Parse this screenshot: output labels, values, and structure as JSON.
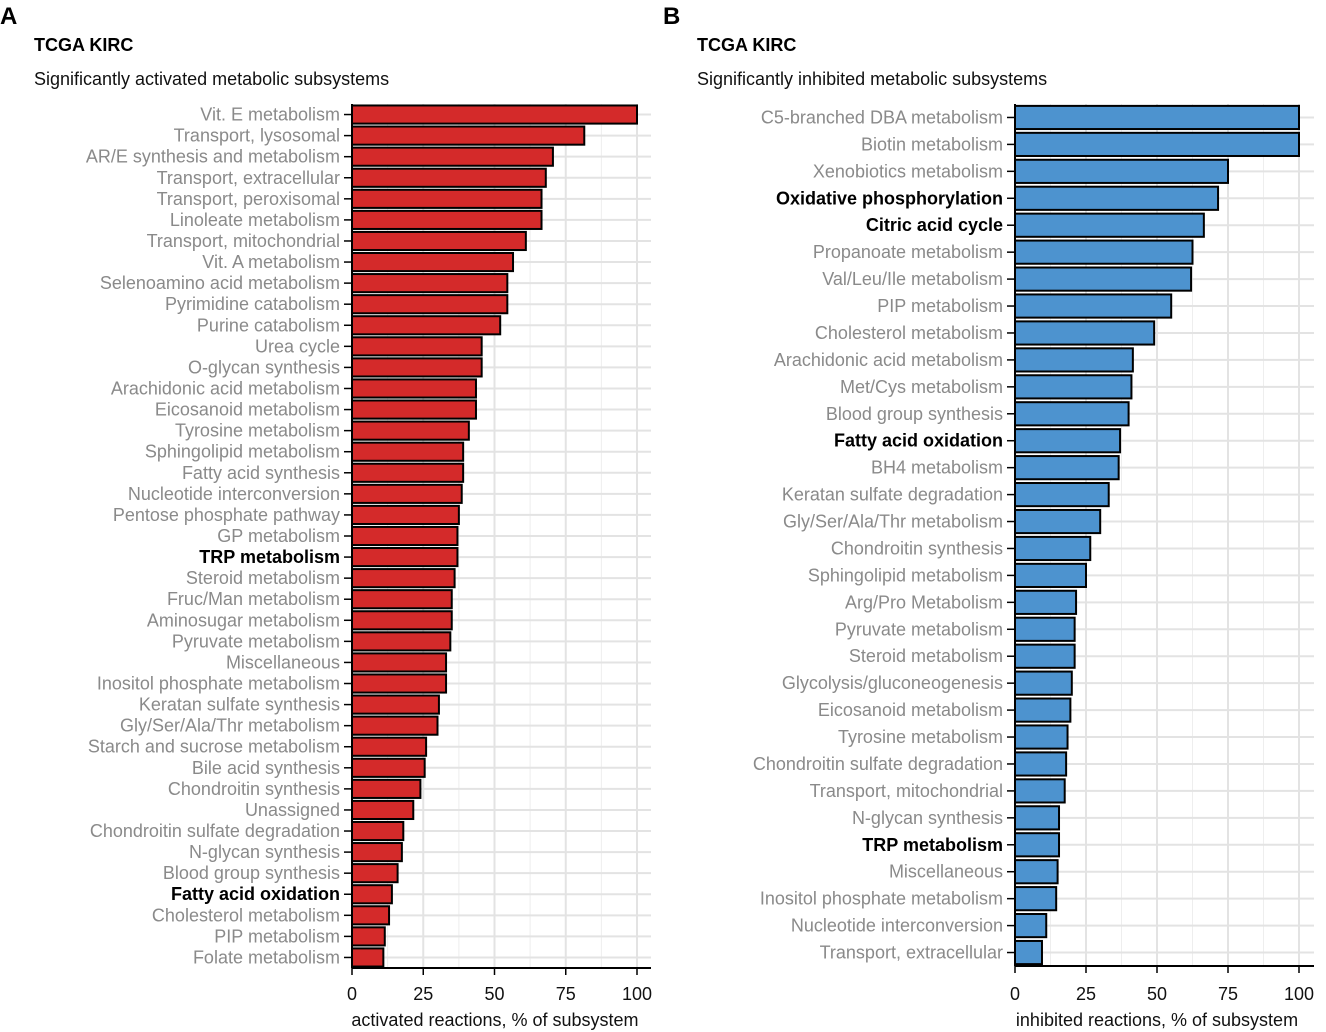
{
  "panels": [
    {
      "letter": "A",
      "title": "TCGA KIRC",
      "subtitle": "Significantly activated metabolic subsystems"
    },
    {
      "letter": "B",
      "title": "TCGA KIRC",
      "subtitle": "Significantly inhibited metabolic subsystems"
    }
  ],
  "chart_data": [
    {
      "type": "bar",
      "orientation": "horizontal",
      "title": "TCGA KIRC",
      "subtitle": "Significantly activated metabolic subsystems",
      "xlabel": "activated reactions, % of subsystem",
      "ylabel": "",
      "xlim": [
        0,
        100
      ],
      "xticks": [
        0,
        25,
        50,
        75,
        100
      ],
      "grid": true,
      "bar_color": "#d42a2a",
      "categories": [
        "Vit. E metabolism",
        "Transport, lysosomal",
        "AR/E synthesis and metabolism",
        "Transport, extracellular",
        "Transport, peroxisomal",
        "Linoleate metabolism",
        "Transport, mitochondrial",
        "Vit. A metabolism",
        "Selenoamino acid metabolism",
        "Pyrimidine catabolism",
        "Purine catabolism",
        "Urea cycle",
        "O-glycan  synthesis",
        "Arachidonic acid metabolism",
        "Eicosanoid metabolism",
        "Tyrosine metabolism",
        "Sphingolipid metabolism",
        "Fatty acid synthesis",
        "Nucleotide interconversion",
        "Pentose phosphate pathway",
        "GP metabolism",
        "TRP metabolism",
        "Steroid metabolism",
        "Fruc/Man metabolism",
        "Aminosugar metabolism",
        "Pyruvate metabolism",
        "Miscellaneous",
        "Inositol phosphate metabolism",
        "Keratan sulfate synthesis",
        "Gly/Ser/Ala/Thr metabolism",
        "Starch and sucrose metabolism",
        "Bile acid synthesis",
        "Chondroitin synthesis",
        "Unassigned",
        "Chondroitin sulfate degradation",
        "N-glycan  synthesis",
        "Blood group synthesis",
        "Fatty acid oxidation",
        "Cholesterol metabolism",
        "PIP metabolism",
        "Folate metabolism"
      ],
      "values": [
        100,
        81.5,
        70.5,
        68,
        66.5,
        66.5,
        61,
        56.5,
        54.5,
        54.5,
        52,
        45.5,
        45.5,
        43.5,
        43.5,
        41,
        39,
        39,
        38.5,
        37.5,
        37,
        37,
        36,
        35,
        35,
        34.5,
        33,
        33,
        30.5,
        30,
        26,
        25.5,
        24,
        21.5,
        18,
        17.5,
        16,
        14,
        13,
        11.5,
        11
      ],
      "emphasized": [
        "TRP metabolism",
        "Fatty acid oxidation"
      ]
    },
    {
      "type": "bar",
      "orientation": "horizontal",
      "title": "TCGA KIRC",
      "subtitle": "Significantly inhibited metabolic subsystems",
      "xlabel": "inhibited reactions, % of subsystem",
      "ylabel": "",
      "xlim": [
        0,
        100
      ],
      "xticks": [
        0,
        25,
        50,
        75,
        100
      ],
      "grid": true,
      "bar_color": "#4d93cf",
      "categories": [
        "C5-branched  DBA metabolism",
        "Biotin metabolism",
        "Xenobiotics metabolism",
        "Oxidative phosphorylation",
        "Citric acid cycle",
        "Propanoate metabolism",
        "Val/Leu/Ile metabolism",
        "PIP metabolism",
        "Cholesterol metabolism",
        "Arachidonic acid metabolism",
        "Met/Cys metabolism",
        "Blood group synthesis",
        "Fatty acid oxidation",
        "BH4 metabolism",
        "Keratan sulfate degradation",
        "Gly/Ser/Ala/Thr metabolism",
        "Chondroitin synthesis",
        "Sphingolipid metabolism",
        "Arg/Pro Metabolism",
        "Pyruvate metabolism",
        "Steroid metabolism",
        "Glycolysis/gluconeogenesis",
        "Eicosanoid metabolism",
        "Tyrosine metabolism",
        "Chondroitin sulfate degradation",
        "Transport, mitochondrial",
        "N-glycan  synthesis",
        "TRP metabolism",
        "Miscellaneous",
        "Inositol phosphate metabolism",
        "Nucleotide interconversion",
        "Transport, extracellular"
      ],
      "values": [
        100,
        100,
        75,
        71.5,
        66.5,
        62.5,
        62,
        55,
        49,
        41.5,
        41,
        40,
        37,
        36.5,
        33,
        30,
        26.5,
        25,
        21.5,
        21,
        21,
        20,
        19.5,
        18.5,
        18,
        17.5,
        15.5,
        15.5,
        15,
        14.5,
        11,
        9.5
      ],
      "emphasized": [
        "Oxidative phosphorylation",
        "Citric acid cycle",
        "Fatty acid oxidation",
        "TRP metabolism"
      ]
    }
  ]
}
